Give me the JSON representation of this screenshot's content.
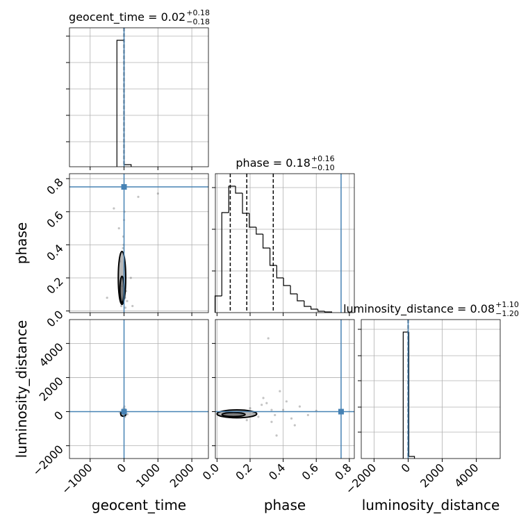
{
  "chart_data": {
    "type": "corner",
    "color": "#000000",
    "truth_color": "#4682b4",
    "grid": true,
    "parameters": [
      {
        "name": "geocent_time",
        "lim": [
          -1610,
          2490
        ],
        "ticks": [
          {
            "value": -1000,
            "label": "−1000"
          },
          0,
          1000,
          2000
        ],
        "truth": 0,
        "title": {
          "text": "geocent_time = 0.02",
          "upper": "+0.18",
          "lower": "−0.18"
        },
        "quantiles": [
          -0.16,
          0.02,
          0.2
        ],
        "hist": {
          "bins": [
            -210,
            0,
            210
          ],
          "counts": [
            0.91,
            0.015
          ],
          "ylim": [
            0,
            1
          ],
          "yticks": [
            0.18,
            0.37,
            0.56,
            0.75,
            0.94
          ]
        }
      },
      {
        "name": "phase",
        "lim": [
          -0.01,
          0.83
        ],
        "ticks": [
          {
            "value": 0,
            "label": "0.0"
          },
          0.2,
          0.4,
          0.6,
          0.8
        ],
        "truth": 0.75,
        "title": {
          "text": "phase = 0.18",
          "upper": "+0.16",
          "lower": "−0.10"
        },
        "quantiles": [
          0.08,
          0.18,
          0.34
        ],
        "hist": {
          "bins": [
            -0.012,
            0.029,
            0.071,
            0.112,
            0.154,
            0.195,
            0.237,
            0.278,
            0.32,
            0.361,
            0.402,
            0.444,
            0.485,
            0.527,
            0.568,
            0.61,
            0.651,
            0.693
          ],
          "counts": [
            0.12,
            0.72,
            0.91,
            0.86,
            0.715,
            0.615,
            0.565,
            0.465,
            0.34,
            0.25,
            0.195,
            0.135,
            0.085,
            0.045,
            0.025,
            0.01,
            0.005
          ],
          "ylim": [
            0,
            1
          ],
          "yticks": [
            0.3,
            0.6,
            0.9
          ]
        }
      },
      {
        "name": "luminosity_distance",
        "lim": [
          -2750,
          5400
        ],
        "ticks": [
          {
            "value": -2000,
            "label": "−2000"
          },
          0,
          2000,
          4000
        ],
        "truth": 0,
        "title": {
          "text": "luminosity_distance = 0.08",
          "upper": "+1.10",
          "lower": "−1.20"
        },
        "quantiles": [
          -1.12,
          0.08,
          1.18
        ],
        "hist": {
          "bins": [
            -290,
            40,
            370
          ],
          "counts": [
            0.91,
            0.015
          ],
          "ylim": [
            0,
            1
          ],
          "yticks": [
            0.19,
            0.37,
            0.56,
            0.74,
            0.93
          ]
        }
      }
    ],
    "pairs": [
      {
        "x": 0,
        "y": 1,
        "points": {
          "x": [
            -50,
            30,
            -120,
            60,
            -20,
            10,
            -300,
            200,
            -80,
            40,
            -500,
            420,
            -30,
            20,
            -60,
            90,
            -150,
            0,
            -10,
            250,
            1000
          ],
          "y": [
            0.05,
            0.08,
            0.3,
            0.12,
            0.45,
            0.6,
            0.62,
            0.2,
            0.03,
            0.02,
            0.08,
            0.69,
            0.38,
            0.25,
            0.15,
            0.06,
            0.5,
            0.55,
            0.4,
            0.03,
            0.71
          ]
        },
        "contours": [
          {
            "x": -60,
            "y": 0.2,
            "x_radius": 110,
            "y_radius": 0.16
          },
          {
            "x": -60,
            "y": 0.13,
            "x_radius": 60,
            "y_radius": 0.08
          }
        ]
      },
      {
        "x": 0,
        "y": 2,
        "points": {
          "x": [
            -30,
            20,
            -80,
            50,
            10,
            -120,
            100,
            -10,
            30,
            -50
          ],
          "y": [
            -100,
            150,
            -250,
            50,
            300,
            -50,
            -150,
            200,
            -300,
            100
          ]
        },
        "contours": [
          {
            "x": -20,
            "y": -120,
            "x_radius": 80,
            "y_radius": 150
          }
        ]
      },
      {
        "x": 1,
        "y": 2,
        "points": {
          "x": [
            0.2,
            0.25,
            0.3,
            0.35,
            0.4,
            0.45,
            0.5,
            0.28,
            0.33,
            0.38,
            0.22,
            0.42,
            0.55,
            0.31,
            0.36,
            0.27,
            0.47,
            0.33,
            0.6,
            0.18
          ],
          "y": [
            200,
            -300,
            500,
            -200,
            100,
            -400,
            300,
            800,
            -600,
            1200,
            -100,
            600,
            -200,
            4300,
            -1400,
            400,
            -800,
            100,
            50,
            -500
          ]
        },
        "contours": [
          {
            "x": 0.12,
            "y": -130,
            "x_radius": 0.12,
            "y_radius": 230
          },
          {
            "x": 0.1,
            "y": -170,
            "x_radius": 0.07,
            "y_radius": 120
          }
        ]
      }
    ]
  }
}
